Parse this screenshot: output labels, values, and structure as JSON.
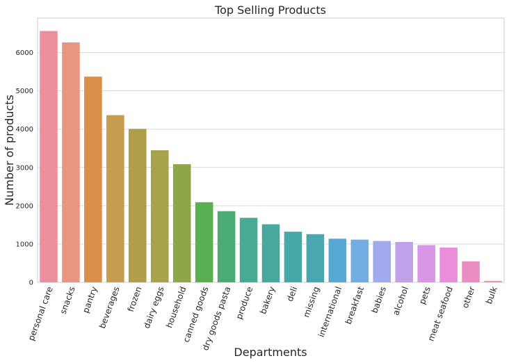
{
  "chart_data": {
    "type": "bar",
    "title": "Top Selling Products",
    "xlabel": "Departments",
    "ylabel": "Number of products",
    "ylim": [
      0,
      6900
    ],
    "yticks": [
      0,
      1000,
      2000,
      3000,
      4000,
      5000,
      6000
    ],
    "grid": "horizontal",
    "categories": [
      "personal care",
      "snacks",
      "pantry",
      "beverages",
      "frozen",
      "dairy eggs",
      "household",
      "canned goods",
      "dry goods pasta",
      "produce",
      "bakery",
      "deli",
      "missing",
      "international",
      "breakfast",
      "babies",
      "alcohol",
      "pets",
      "meat seafood",
      "other",
      "bulk"
    ],
    "values": [
      6563,
      6264,
      5371,
      4365,
      4007,
      3449,
      3085,
      2092,
      1858,
      1684,
      1516,
      1322,
      1258,
      1139,
      1115,
      1081,
      1054,
      972,
      907,
      548,
      38
    ],
    "colors": [
      "#ea8f9b",
      "#e89582",
      "#d99049",
      "#c69d4f",
      "#b09e4a",
      "#a6a34c",
      "#8ea648",
      "#5aaf52",
      "#4bab75",
      "#47aa92",
      "#47a99e",
      "#47a9a7",
      "#49a7b2",
      "#56a9d2",
      "#73abe3",
      "#a1aaec",
      "#c0a1ea",
      "#d995e8",
      "#ea8ddb",
      "#ea8dc2",
      "#e79aa8"
    ]
  }
}
